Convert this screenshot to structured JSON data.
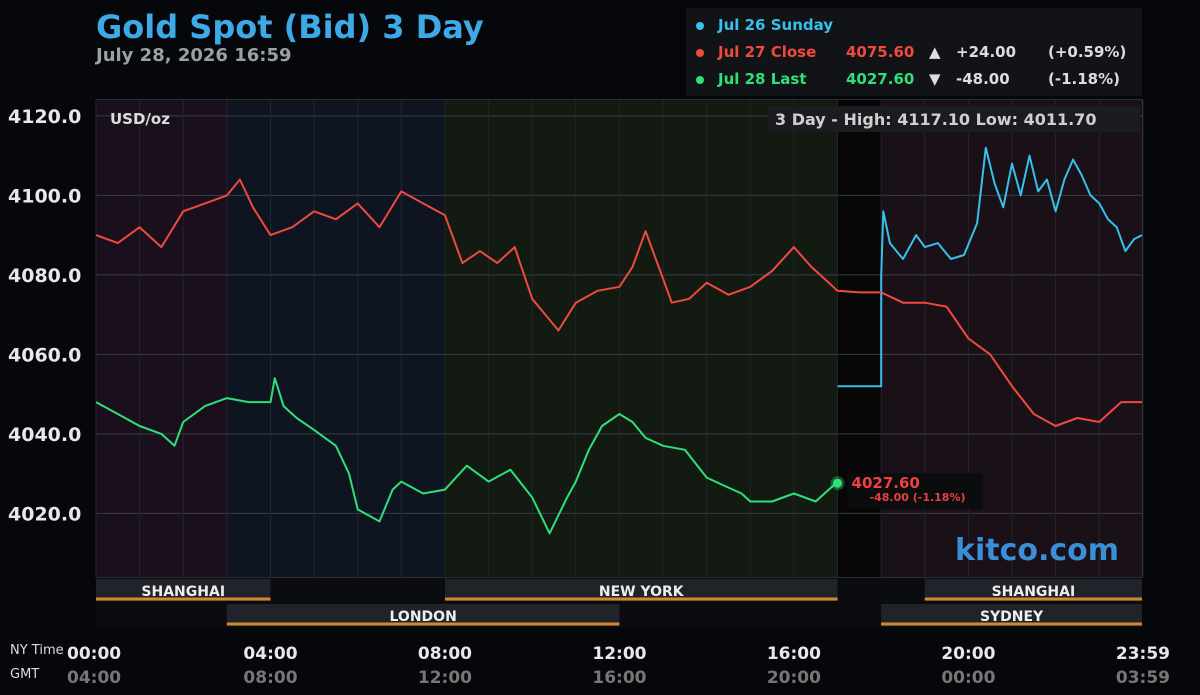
{
  "title": "Gold Spot (Bid) 3 Day",
  "subtitle": "July 28, 2026 16:59",
  "legend": [
    {
      "label": "Jul 26 Sunday",
      "value": "",
      "arrow": "",
      "change": "",
      "pct": "",
      "color": "#36c0ea"
    },
    {
      "label": "Jul 27 Close",
      "value": "4075.60",
      "arrow": "▲",
      "change": "+24.00",
      "pct": "(+0.59%)",
      "color": "#ee4a3e"
    },
    {
      "label": "Jul 28 Last",
      "value": "4027.60",
      "arrow": "▼",
      "change": "-48.00",
      "pct": "(-1.18%)",
      "color": "#2ee07a"
    }
  ],
  "unit_label": "USD/oz",
  "range_label": "3 Day - High: 4117.10  Low: 4011.70",
  "brand": "kitco.com",
  "last_marker": {
    "value": "4027.60",
    "change": "-48.00 (-1.18%)"
  },
  "sessions_row1": [
    {
      "name": "SHANGHAI",
      "start": 0,
      "end": 4
    },
    {
      "name": "NEW YORK",
      "start": 8,
      "end": 17
    },
    {
      "name": "SHANGHAI",
      "start": 19,
      "end": 23.98
    }
  ],
  "sessions_row2": [
    {
      "name": "LONDON",
      "start": 3,
      "end": 12
    },
    {
      "name": "SYDNEY",
      "start": 18,
      "end": 23.98
    }
  ],
  "time_row_labels": {
    "ny": "NY Time",
    "gmt": "GMT"
  },
  "chart_data": {
    "type": "line",
    "title": "Gold Spot (Bid) 3 Day",
    "ylabel": "USD/oz",
    "ylim": [
      4004,
      4124
    ],
    "yticks": [
      "4120.0",
      "4100.0",
      "4080.0",
      "4060.0",
      "4040.0",
      "4020.0"
    ],
    "ytick_values": [
      4120,
      4100,
      4080,
      4060,
      4040,
      4020
    ],
    "xlim": [
      0,
      23.98
    ],
    "xticks_ny": [
      "00:00",
      "04:00",
      "08:00",
      "12:00",
      "16:00",
      "20:00",
      "23:59"
    ],
    "xticks_gmt": [
      "04:00",
      "08:00",
      "12:00",
      "16:00",
      "20:00",
      "00:00",
      "03:59"
    ],
    "xtick_hours": [
      0,
      4,
      8,
      12,
      16,
      20,
      23.98
    ],
    "grid": true,
    "series": [
      {
        "name": "Jul 26 Sunday",
        "color": "#36c0ea",
        "x": [
          17,
          18,
          18,
          18.05,
          18.2,
          18.5,
          18.8,
          19,
          19.3,
          19.6,
          19.9,
          20.2,
          20.4,
          20.6,
          20.8,
          21,
          21.2,
          21.4,
          21.6,
          21.8,
          22,
          22.2,
          22.4,
          22.6,
          22.8,
          23,
          23.2,
          23.4,
          23.6,
          23.8,
          23.98
        ],
        "y": [
          4052,
          4052,
          4080,
          4096,
          4088,
          4084,
          4090,
          4087,
          4088,
          4084,
          4085,
          4093,
          4112,
          4103,
          4097,
          4108,
          4100,
          4110,
          4101,
          4104,
          4096,
          4104,
          4109,
          4105,
          4100,
          4098,
          4094,
          4092,
          4086,
          4089,
          4090
        ]
      },
      {
        "name": "Jul 27 Close",
        "color": "#ee4a3e",
        "x": [
          0,
          0.5,
          1,
          1.5,
          2,
          2.5,
          3,
          3.3,
          3.6,
          4,
          4.5,
          5,
          5.5,
          6,
          6.5,
          7,
          7.5,
          8,
          8.4,
          8.8,
          9.2,
          9.6,
          10,
          10.3,
          10.6,
          11,
          11.5,
          12,
          12.3,
          12.6,
          12.9,
          13.2,
          13.6,
          14,
          14.5,
          15,
          15.5,
          16,
          16.4,
          16.8,
          17,
          17.5,
          18,
          18.5,
          19,
          19.5,
          20,
          20.5,
          21,
          21.5,
          22,
          22.5,
          23,
          23.5,
          23.98
        ],
        "y": [
          4090,
          4088,
          4092,
          4087,
          4096,
          4098,
          4100,
          4104,
          4097,
          4090,
          4092,
          4096,
          4094,
          4098,
          4092,
          4101,
          4098,
          4095,
          4083,
          4086,
          4083,
          4087,
          4074,
          4070,
          4066,
          4073,
          4076,
          4077,
          4082,
          4091,
          4082,
          4073,
          4074,
          4078,
          4075,
          4077,
          4081,
          4087,
          4082,
          4078,
          4076,
          4075.6,
          4075.6,
          4073,
          4073,
          4072,
          4064,
          4060,
          4052,
          4045,
          4042,
          4044,
          4043,
          4048,
          4048
        ]
      },
      {
        "name": "Jul 28 Last",
        "color": "#2ee07a",
        "x": [
          0,
          0.5,
          1,
          1.5,
          1.8,
          2,
          2.5,
          3,
          3.5,
          4,
          4.1,
          4.3,
          4.6,
          5,
          5.5,
          5.8,
          6,
          6.5,
          6.8,
          7,
          7.5,
          8,
          8.5,
          9,
          9.5,
          10,
          10.4,
          10.8,
          11,
          11.3,
          11.6,
          12,
          12.3,
          12.6,
          13,
          13.5,
          14,
          14.4,
          14.8,
          15,
          15.5,
          16,
          16.5,
          16.9,
          17
        ],
        "y": [
          4048,
          4045,
          4042,
          4040,
          4037,
          4043,
          4047,
          4049,
          4048,
          4048,
          4054,
          4047,
          4044,
          4041,
          4037,
          4030,
          4021,
          4018,
          4026,
          4028,
          4025,
          4026,
          4032,
          4028,
          4031,
          4024,
          4015,
          4024,
          4028,
          4036,
          4042,
          4045,
          4043,
          4039,
          4037,
          4036,
          4029,
          4027,
          4025,
          4023,
          4023,
          4025,
          4023,
          4027,
          4027.6
        ]
      }
    ]
  }
}
